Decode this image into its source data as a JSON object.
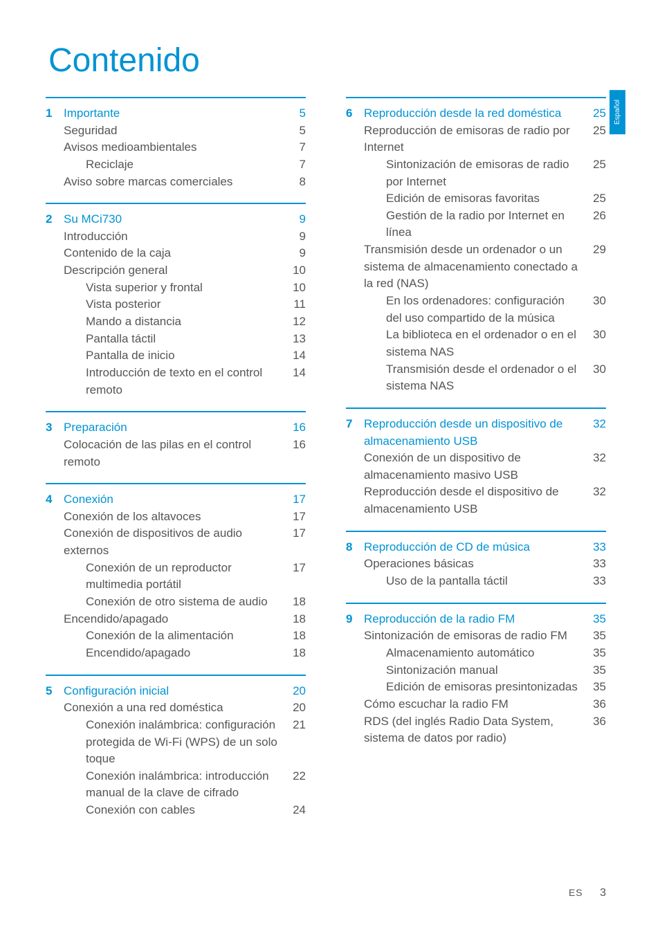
{
  "title": "Contenido",
  "language_tab": "Español",
  "footer": {
    "lang": "ES",
    "page": "3"
  },
  "colors": {
    "accent": "#0093d4",
    "text": "#555555",
    "background": "#ffffff",
    "rule": "#0093d4"
  },
  "typography": {
    "title_fontsize": 48,
    "body_fontsize": 17,
    "font_family": "Gill Sans"
  },
  "left_sections": [
    {
      "num": "1",
      "title": "Importante",
      "page": "5",
      "items": [
        {
          "level": 1,
          "text": "Seguridad",
          "page": "5"
        },
        {
          "level": 1,
          "text": "Avisos medioambientales",
          "page": "7"
        },
        {
          "level": 2,
          "text": "Reciclaje",
          "page": "7"
        },
        {
          "level": 1,
          "text": "Aviso sobre marcas comerciales",
          "page": "8"
        }
      ]
    },
    {
      "num": "2",
      "title": "Su MCi730",
      "page": "9",
      "items": [
        {
          "level": 1,
          "text": "Introducción",
          "page": "9"
        },
        {
          "level": 1,
          "text": "Contenido de la caja",
          "page": "9"
        },
        {
          "level": 1,
          "text": "Descripción general",
          "page": "10"
        },
        {
          "level": 2,
          "text": "Vista superior y frontal",
          "page": "10"
        },
        {
          "level": 2,
          "text": "Vista posterior",
          "page": "11"
        },
        {
          "level": 2,
          "text": "Mando a distancia",
          "page": "12"
        },
        {
          "level": 2,
          "text": "Pantalla táctil",
          "page": "13"
        },
        {
          "level": 2,
          "text": "Pantalla de inicio",
          "page": "14"
        },
        {
          "level": 2,
          "text": "Introducción de texto en el control remoto",
          "page": "14"
        }
      ]
    },
    {
      "num": "3",
      "title": "Preparación",
      "page": "16",
      "items": [
        {
          "level": 1,
          "text": "Colocación de las pilas en el control remoto",
          "page": "16"
        }
      ]
    },
    {
      "num": "4",
      "title": "Conexión",
      "page": "17",
      "items": [
        {
          "level": 1,
          "text": "Conexión de los altavoces",
          "page": "17"
        },
        {
          "level": 1,
          "text": "Conexión de dispositivos de audio externos",
          "page": "17"
        },
        {
          "level": 2,
          "text": "Conexión de un reproductor multimedia portátil",
          "page": "17"
        },
        {
          "level": 2,
          "text": "Conexión de otro sistema de audio",
          "page": "18"
        },
        {
          "level": 1,
          "text": "Encendido/apagado",
          "page": "18"
        },
        {
          "level": 2,
          "text": "Conexión de la alimentación",
          "page": "18"
        },
        {
          "level": 2,
          "text": "Encendido/apagado",
          "page": "18"
        }
      ]
    },
    {
      "num": "5",
      "title": "Configuración inicial",
      "page": "20",
      "items": [
        {
          "level": 1,
          "text": "Conexión a una red doméstica",
          "page": "20"
        },
        {
          "level": 2,
          "text": "Conexión inalámbrica: configuración protegida de Wi-Fi (WPS) de un solo toque",
          "page": "21"
        },
        {
          "level": 2,
          "text": "Conexión inalámbrica: introducción manual de la clave de cifrado",
          "page": "22"
        },
        {
          "level": 2,
          "text": "Conexión con cables",
          "page": "24"
        }
      ]
    }
  ],
  "right_sections": [
    {
      "num": "6",
      "title": "Reproducción desde la red doméstica",
      "page": "25",
      "items": [
        {
          "level": 1,
          "text": "Reproducción de emisoras de radio por Internet",
          "page": "25"
        },
        {
          "level": 2,
          "text": "Sintonización de emisoras de radio por Internet",
          "page": "25"
        },
        {
          "level": 2,
          "text": "Edición de emisoras favoritas",
          "page": "25"
        },
        {
          "level": 2,
          "text": "Gestión de la radio por Internet en línea",
          "page": "26"
        },
        {
          "level": 1,
          "text": "Transmisión desde un ordenador o un sistema de almacenamiento conectado a la red (NAS)",
          "page": "29"
        },
        {
          "level": 2,
          "text": "En los ordenadores: configuración del uso compartido de la música",
          "page": "30"
        },
        {
          "level": 2,
          "text": "La biblioteca en el ordenador o en el sistema NAS",
          "page": "30"
        },
        {
          "level": 2,
          "text": "Transmisión desde el ordenador o el sistema NAS",
          "page": "30"
        }
      ]
    },
    {
      "num": "7",
      "title": "Reproducción desde un dispositivo de almacenamiento USB",
      "page": "32",
      "items": [
        {
          "level": 1,
          "text": "Conexión de un dispositivo de almacenamiento masivo USB",
          "page": "32"
        },
        {
          "level": 1,
          "text": "Reproducción desde el dispositivo de almacenamiento USB",
          "page": "32"
        }
      ]
    },
    {
      "num": "8",
      "title": "Reproducción de CD de música",
      "page": "33",
      "items": [
        {
          "level": 1,
          "text": "Operaciones básicas",
          "page": "33"
        },
        {
          "level": 2,
          "text": "Uso de la pantalla táctil",
          "page": "33"
        }
      ]
    },
    {
      "num": "9",
      "title": "Reproducción de la radio FM",
      "page": "35",
      "items": [
        {
          "level": 1,
          "text": "Sintonización de emisoras de radio FM",
          "page": "35"
        },
        {
          "level": 2,
          "text": "Almacenamiento automático",
          "page": "35"
        },
        {
          "level": 2,
          "text": "Sintonización manual",
          "page": "35"
        },
        {
          "level": 2,
          "text": "Edición de emisoras presintonizadas",
          "page": "35"
        },
        {
          "level": 1,
          "text": "Cómo escuchar la radio FM",
          "page": "36"
        },
        {
          "level": 1,
          "text": "RDS (del inglés Radio Data System, sistema de datos por radio)",
          "page": "36"
        }
      ]
    }
  ]
}
